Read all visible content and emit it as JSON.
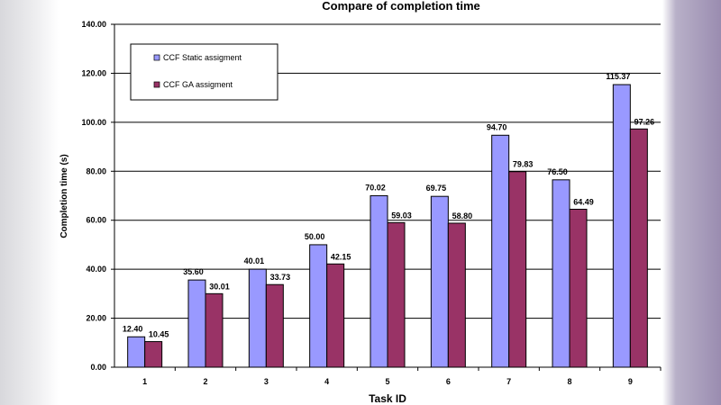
{
  "chart_data": {
    "type": "bar",
    "title": "Compare of completion time",
    "xlabel": "Task ID",
    "ylabel": "Completion time (s)",
    "ylim": [
      0,
      140
    ],
    "yticks": [
      "0.00",
      "20.00",
      "40.00",
      "60.00",
      "80.00",
      "100.00",
      "120.00",
      "140.00"
    ],
    "categories": [
      "1",
      "2",
      "3",
      "4",
      "5",
      "6",
      "7",
      "8",
      "9"
    ],
    "grid": true,
    "legend": "top-left",
    "series": [
      {
        "name": "CCF Static assigment",
        "color": "#9999ff",
        "values": [
          12.4,
          35.6,
          40.01,
          50.0,
          70.02,
          69.75,
          94.7,
          76.5,
          115.37
        ]
      },
      {
        "name": "CCF GA assigment",
        "color": "#993366",
        "values": [
          10.45,
          30.01,
          33.73,
          42.15,
          59.03,
          58.8,
          79.83,
          64.49,
          97.26
        ]
      }
    ]
  }
}
